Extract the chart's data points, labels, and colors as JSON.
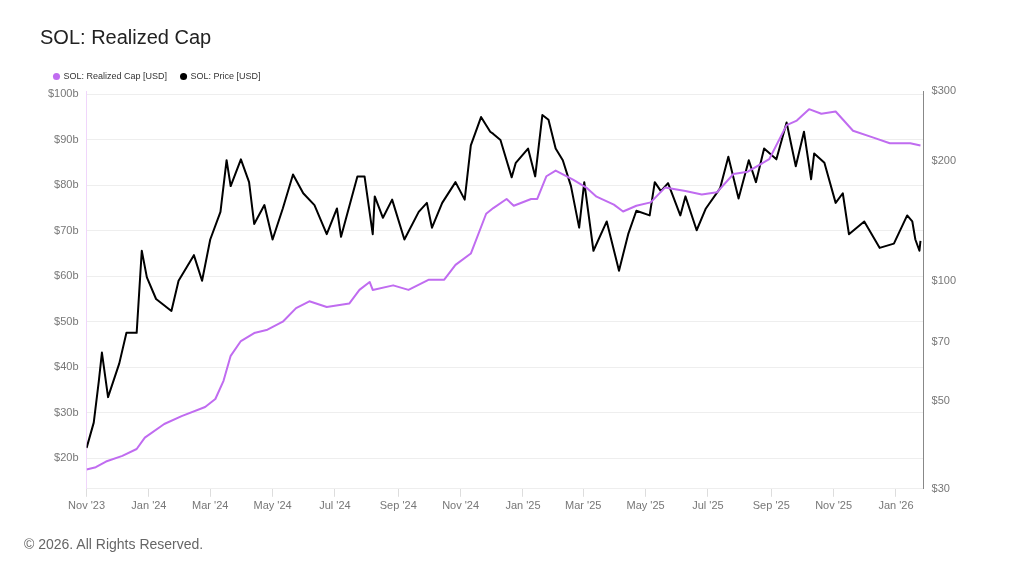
{
  "chart_data": {
    "type": "line",
    "title": "SOL: Realized Cap",
    "annotations": [
      "© 2026. All Rights Reserved."
    ],
    "legend": "top left",
    "grid": "y",
    "log": "y2",
    "marker": "none",
    "xlim": [
      "2023-11-01",
      "2026-01-28"
    ],
    "xticks": [
      {
        "value": "2023-11-01",
        "label": "Nov '23"
      },
      {
        "value": "2024-01-01",
        "label": "Jan '24"
      },
      {
        "value": "2024-03-01",
        "label": "Mar '24"
      },
      {
        "value": "2024-05-01",
        "label": "May '24"
      },
      {
        "value": "2024-07-01",
        "label": "Jul '24"
      },
      {
        "value": "2024-09-01",
        "label": "Sep '24"
      },
      {
        "value": "2024-11-01",
        "label": "Nov '24"
      },
      {
        "value": "2025-01-01",
        "label": "Jan '25"
      },
      {
        "value": "2025-03-01",
        "label": "Mar '25"
      },
      {
        "value": "2025-05-01",
        "label": "May '25"
      },
      {
        "value": "2025-07-01",
        "label": "Jul '25"
      },
      {
        "value": "2025-09-01",
        "label": "Sep '25"
      },
      {
        "value": "2025-11-01",
        "label": "Nov '25"
      },
      {
        "value": "2026-01-01",
        "label": "Jan '26"
      }
    ],
    "ylim": [
      13.25,
      100.75
    ],
    "yticks": [
      {
        "value": 20,
        "label": "$20b"
      },
      {
        "value": 30,
        "label": "$30b"
      },
      {
        "value": 40,
        "label": "$40b"
      },
      {
        "value": 50,
        "label": "$50b"
      },
      {
        "value": 60,
        "label": "$60b"
      },
      {
        "value": 70,
        "label": "$70b"
      },
      {
        "value": 80,
        "label": "$80b"
      },
      {
        "value": 90,
        "label": "$90b"
      },
      {
        "value": 100,
        "label": "$100b"
      }
    ],
    "y2lim": [
      30,
      300
    ],
    "y2ticks": [
      {
        "value": 30,
        "label": "$30"
      },
      {
        "value": 50,
        "label": "$50"
      },
      {
        "value": 70,
        "label": "$70"
      },
      {
        "value": 100,
        "label": "$100"
      },
      {
        "value": 200,
        "label": "$200"
      },
      {
        "value": 300,
        "label": "$300"
      }
    ],
    "series": [
      {
        "name": "SOL: Realized Cap [USD]",
        "color": "#c06cf0",
        "x": [
          "2023-11-01",
          "2023-11-10",
          "2023-11-20",
          "2023-12-06",
          "2023-12-20",
          "2023-12-28",
          "2024-01-16",
          "2024-02-02",
          "2024-02-25",
          "2024-03-06",
          "2024-03-14",
          "2024-03-21",
          "2024-03-31",
          "2024-04-13",
          "2024-04-26",
          "2024-05-11",
          "2024-05-24",
          "2024-06-06",
          "2024-06-23",
          "2024-07-15",
          "2024-07-25",
          "2024-08-04",
          "2024-08-07",
          "2024-08-27",
          "2024-09-11",
          "2024-10-01",
          "2024-10-16",
          "2024-10-27",
          "2024-11-11",
          "2024-11-26",
          "2024-12-03",
          "2024-12-16",
          "2024-12-23",
          "2025-01-09",
          "2025-01-15",
          "2025-01-24",
          "2025-02-02",
          "2025-02-19",
          "2025-03-04",
          "2025-03-14",
          "2025-03-31",
          "2025-04-09",
          "2025-04-22",
          "2025-05-06",
          "2025-05-20",
          "2025-06-09",
          "2025-06-25",
          "2025-07-10",
          "2025-07-26",
          "2025-08-09",
          "2025-08-30",
          "2025-09-16",
          "2025-09-26",
          "2025-10-08",
          "2025-10-20",
          "2025-11-03",
          "2025-11-20",
          "2025-12-10",
          "2025-12-26",
          "2026-01-15",
          "2026-01-25"
        ],
        "values": [
          17.5,
          18,
          19.25,
          20.5,
          22,
          24.5,
          27.5,
          29.25,
          31.25,
          33,
          37,
          42.5,
          45.75,
          47.5,
          48.25,
          50,
          53,
          54.5,
          53.25,
          54,
          57,
          58.75,
          57,
          58,
          57,
          59.25,
          59.25,
          62.5,
          65,
          73.75,
          75,
          77,
          75.5,
          77,
          77,
          82,
          83.25,
          81.25,
          79.5,
          77.5,
          75.75,
          74.25,
          75.5,
          76.25,
          79.5,
          78.75,
          78,
          78.5,
          82.5,
          83,
          85.75,
          93.25,
          94.25,
          96.75,
          95.75,
          96.25,
          92,
          90.5,
          89.25,
          89.25,
          88.75
        ]
      },
      {
        "name": "SOL: Price [USD]",
        "color": "#000000",
        "axis": "y2",
        "x": [
          "2023-11-01",
          "2023-11-08",
          "2023-11-13",
          "2023-11-16",
          "2023-11-22",
          "2023-12-03",
          "2023-12-10",
          "2023-12-20",
          "2023-12-25",
          "2023-12-30",
          "2024-01-08",
          "2024-01-23",
          "2024-01-30",
          "2024-02-14",
          "2024-02-22",
          "2024-03-01",
          "2024-03-11",
          "2024-03-17",
          "2024-03-21",
          "2024-03-31",
          "2024-04-08",
          "2024-04-13",
          "2024-04-23",
          "2024-05-01",
          "2024-05-11",
          "2024-05-21",
          "2024-05-31",
          "2024-06-11",
          "2024-06-23",
          "2024-07-03",
          "2024-07-07",
          "2024-07-23",
          "2024-07-30",
          "2024-08-07",
          "2024-08-09",
          "2024-08-17",
          "2024-08-26",
          "2024-09-07",
          "2024-09-21",
          "2024-09-29",
          "2024-10-04",
          "2024-10-14",
          "2024-10-27",
          "2024-11-05",
          "2024-11-11",
          "2024-11-21",
          "2024-11-30",
          "2024-12-03",
          "2024-12-10",
          "2024-12-21",
          "2024-12-25",
          "2025-01-06",
          "2025-01-13",
          "2025-01-20",
          "2025-01-26",
          "2025-02-02",
          "2025-02-09",
          "2025-02-17",
          "2025-02-25",
          "2025-03-02",
          "2025-03-11",
          "2025-03-24",
          "2025-04-05",
          "2025-04-14",
          "2025-04-22",
          "2025-05-05",
          "2025-05-10",
          "2025-05-16",
          "2025-05-23",
          "2025-06-04",
          "2025-06-09",
          "2025-06-20",
          "2025-06-29",
          "2025-07-13",
          "2025-07-21",
          "2025-07-31",
          "2025-08-10",
          "2025-08-17",
          "2025-08-25",
          "2025-09-06",
          "2025-09-16",
          "2025-09-25",
          "2025-10-03",
          "2025-10-10",
          "2025-10-13",
          "2025-10-23",
          "2025-11-03",
          "2025-11-10",
          "2025-11-16",
          "2025-12-01",
          "2025-12-16",
          "2025-12-30",
          "2026-01-12",
          "2026-01-17",
          "2026-01-20",
          "2026-01-24",
          "2026-01-25"
        ],
        "values": [
          38,
          44,
          56,
          66,
          51,
          62,
          74,
          74,
          119,
          102,
          90,
          84,
          100,
          116,
          100,
          127,
          149,
          201,
          173,
          202,
          177,
          139,
          155,
          127,
          152,
          185,
          166,
          155,
          131,
          152,
          129,
          183,
          183,
          131,
          163,
          144,
          160,
          127,
          149,
          157,
          136,
          157,
          177,
          160,
          219,
          258,
          237,
          234,
          226,
          182,
          198,
          215,
          183,
          261,
          254,
          215,
          201,
          173,
          136,
          177,
          119,
          141,
          106,
          131,
          150,
          146,
          177,
          168,
          176,
          146,
          163,
          134,
          152,
          171,
          205,
          161,
          201,
          177,
          215,
          202,
          250,
          194,
          237,
          180,
          209,
          198,
          157,
          166,
          131,
          141,
          121,
          124,
          146,
          141,
          127,
          119,
          126
        ]
      }
    ]
  }
}
